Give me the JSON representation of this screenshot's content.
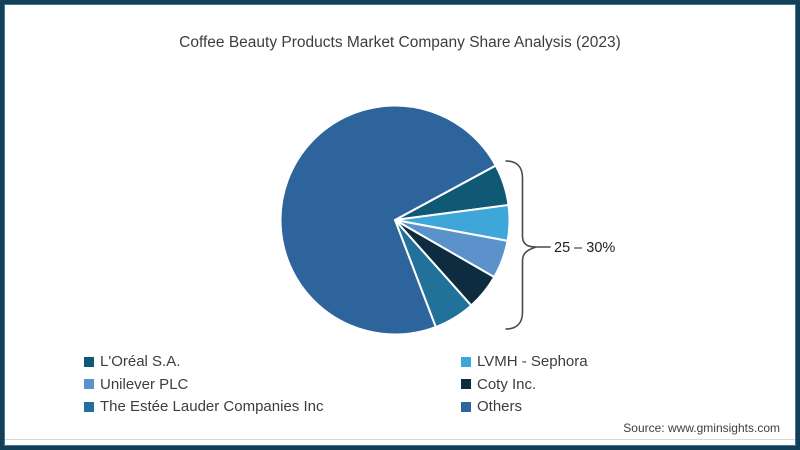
{
  "colors": {
    "background": "#ffffff",
    "frame_border": "#133f58",
    "frame_border_inner": "#3e7896",
    "title_text": "#3d3d3d",
    "legend_text": "#3d3d3d",
    "annotation_text": "#222222",
    "bracket": "#4a4a4a",
    "divider": "#d9d9d9",
    "source_text": "#3f3f3f"
  },
  "source": "Source: www.gminsights.com",
  "chart_data": {
    "type": "pie",
    "title": "Coffee Beauty Products Market Company Share Analysis (2023)",
    "slices": [
      {
        "label": "L'Oréal S.A.",
        "value": 5.8,
        "color": "#0f5975"
      },
      {
        "label": "LVMH - Sephora",
        "value": 5.0,
        "color": "#3ea6d9"
      },
      {
        "label": "Unilever PLC",
        "value": 5.4,
        "color": "#5b92cc"
      },
      {
        "label": "Coty Inc.",
        "value": 5.1,
        "color": "#0d2c3f"
      },
      {
        "label": "The Estée Lauder Companies Inc",
        "value": 5.8,
        "color": "#21719b"
      },
      {
        "label": "Others",
        "value": 72.9,
        "color": "#2d649b"
      }
    ],
    "start_angle_deg": 28.4,
    "direction": "clockwise",
    "slice_stroke": "#ffffff",
    "legend_position": "bottom",
    "legend_columns": [
      [
        0,
        2,
        4
      ],
      [
        1,
        3,
        5
      ]
    ],
    "annotation": {
      "text": "25 – 30%"
    }
  }
}
